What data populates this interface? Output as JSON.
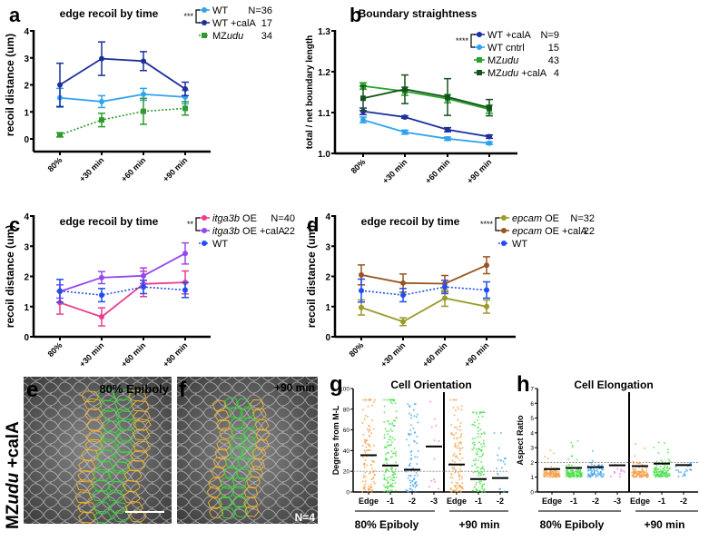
{
  "chart_data": [
    {
      "panel": "a",
      "type": "line",
      "title": "edge recoil by time",
      "xlabel": "",
      "ylabel": "recoil distance (um)",
      "ylim": [
        0,
        4
      ],
      "yticks": [
        0,
        1,
        2,
        3,
        4
      ],
      "categories": [
        "80%",
        "+30 min",
        "+60 min",
        "+90 min"
      ],
      "significance": "***",
      "significance_between": [
        "WT",
        "WT +calA"
      ],
      "n_header": "N=",
      "series": [
        {
          "name": "WT",
          "italic_part": "",
          "n": "36",
          "color": "#2fa3f0",
          "marker": "circle",
          "dashed": false,
          "values": [
            1.52,
            1.38,
            1.65,
            1.55
          ],
          "errors": [
            0.35,
            0.22,
            0.22,
            0.25
          ]
        },
        {
          "name": "WT +calA",
          "italic_part": "",
          "n": "17",
          "color": "#1c2f9c",
          "marker": "circle",
          "dashed": false,
          "values": [
            2.0,
            2.97,
            2.88,
            1.85
          ],
          "errors": [
            0.8,
            0.62,
            0.35,
            0.25
          ]
        },
        {
          "name": "MZ",
          "italic_part": "udu",
          "n": "34",
          "color": "#2e9b2e",
          "marker": "square",
          "dashed": true,
          "values": [
            0.15,
            0.7,
            1.02,
            1.13
          ],
          "errors": [
            0.08,
            0.25,
            0.48,
            0.25
          ]
        }
      ]
    },
    {
      "panel": "b",
      "type": "line",
      "title": "Boundary straightness",
      "xlabel": "",
      "ylabel": "total / net boundary length",
      "ylim": [
        1.0,
        1.3
      ],
      "yticks": [
        1.0,
        1.1,
        1.2,
        1.3
      ],
      "categories": [
        "80%",
        "+30 min",
        "+60 min",
        "+90 min"
      ],
      "significance": "****",
      "significance_between": [
        "WT +calA",
        "WT cntrl"
      ],
      "n_header": "N=",
      "series": [
        {
          "name": "WT +calA",
          "italic_part": "",
          "n": "9",
          "color": "#1c2f9c",
          "marker": "circle",
          "dashed": false,
          "values": [
            1.103,
            1.089,
            1.058,
            1.041
          ],
          "errors": [
            0.008,
            0.003,
            0.005,
            0.004
          ]
        },
        {
          "name": "WT cntrl",
          "italic_part": "",
          "n": "15",
          "color": "#2fa3f0",
          "marker": "circle",
          "dashed": false,
          "values": [
            1.082,
            1.052,
            1.036,
            1.025
          ],
          "errors": [
            0.007,
            0.005,
            0.004,
            0.003
          ]
        },
        {
          "name": "MZ",
          "italic_part": "udu",
          "n": "43",
          "color": "#27a327",
          "marker": "square",
          "dashed": false,
          "values": [
            1.165,
            1.152,
            1.134,
            1.108
          ],
          "errors": [
            0.008,
            0.01,
            0.01,
            0.01
          ]
        },
        {
          "name": "MZ",
          "italic_part": "udu",
          "name_suffix": " +calA",
          "n": "4",
          "color": "#14531d",
          "marker": "square",
          "dashed": false,
          "values": [
            1.135,
            1.157,
            1.138,
            1.112
          ],
          "errors": [
            0.03,
            0.035,
            0.045,
            0.02
          ]
        }
      ]
    },
    {
      "panel": "c",
      "type": "line",
      "title": "edge recoil by time",
      "xlabel": "",
      "ylabel": "recoil distance (um)",
      "ylim": [
        0,
        4
      ],
      "yticks": [
        0,
        1,
        2,
        3,
        4
      ],
      "categories": [
        "80%",
        "+30 min",
        "+60 min",
        "+90 min"
      ],
      "significance": "**",
      "significance_between": [
        "itga3b OE",
        "itga3b OE +calA"
      ],
      "n_header": "N=",
      "series": [
        {
          "name": "",
          "italic_part": "itga3b",
          "name_suffix": " OE",
          "n": "40",
          "color": "#ee3b8f",
          "marker": "circle",
          "dashed": false,
          "values": [
            1.13,
            0.66,
            1.75,
            1.8
          ],
          "errors": [
            0.38,
            0.3,
            0.42,
            0.38
          ]
        },
        {
          "name": "",
          "italic_part": "itga3b",
          "name_suffix": " OE +calA",
          "n": "22",
          "color": "#9747f0",
          "marker": "circle",
          "dashed": false,
          "values": [
            1.5,
            1.96,
            2.02,
            2.76
          ],
          "errors": [
            0.22,
            0.2,
            0.26,
            0.35
          ]
        },
        {
          "name": "WT",
          "italic_part": "",
          "n": "",
          "color": "#1f4ef0",
          "marker": "circle",
          "dashed": true,
          "values": [
            1.52,
            1.38,
            1.65,
            1.55
          ],
          "errors": [
            0.38,
            0.22,
            0.22,
            0.25
          ]
        }
      ]
    },
    {
      "panel": "d",
      "type": "line",
      "title": "edge recoil by time",
      "xlabel": "",
      "ylabel": "recoil distance (um)",
      "ylim": [
        0,
        4
      ],
      "yticks": [
        0,
        1,
        2,
        3,
        4
      ],
      "categories": [
        "80%",
        "+30 min",
        "+60 min",
        "+90 min"
      ],
      "significance": "****",
      "significance_between": [
        "epcam OE",
        "epcam OE +calA"
      ],
      "n_header": "N=",
      "series": [
        {
          "name": "",
          "italic_part": "epcam",
          "name_suffix": " OE",
          "n": "32",
          "color": "#9b9a2a",
          "marker": "circle",
          "dashed": false,
          "values": [
            0.97,
            0.5,
            1.28,
            1.0
          ],
          "errors": [
            0.25,
            0.13,
            0.27,
            0.22
          ]
        },
        {
          "name": "",
          "italic_part": "epcam",
          "name_suffix": " OE +calA",
          "n": "22",
          "color": "#9a5420",
          "marker": "circle",
          "dashed": false,
          "values": [
            2.05,
            1.78,
            1.76,
            2.37
          ],
          "errors": [
            0.33,
            0.3,
            0.27,
            0.28
          ]
        },
        {
          "name": "WT",
          "italic_part": "",
          "n": "",
          "color": "#1f4ef0",
          "marker": "circle",
          "dashed": true,
          "values": [
            1.53,
            1.38,
            1.65,
            1.55
          ],
          "errors": [
            0.38,
            0.22,
            0.22,
            0.27
          ]
        }
      ]
    },
    {
      "panel": "g",
      "type": "scatter",
      "title": "Cell Orientation",
      "ylabel": "Degrees from M-L",
      "ylim": [
        0,
        100
      ],
      "yticks": [
        0,
        20,
        40,
        60,
        80,
        100
      ],
      "reference_line": 20,
      "groups": [
        {
          "label": "80% Epiboly",
          "categories": [
            "Edge",
            "-1",
            "-2",
            "-3"
          ],
          "means": [
            35.5,
            25.5,
            21.5,
            44
          ],
          "colors": [
            "#f5a04a",
            "#4ee04e",
            "#3fa6ee",
            "#f56ee8"
          ],
          "counts": [
            110,
            140,
            80,
            12
          ],
          "max": [
            89,
            89,
            85,
            90
          ]
        },
        {
          "label": "+90 min",
          "categories": [
            "Edge",
            "-1",
            "-2"
          ],
          "means": [
            26.5,
            12.5,
            13.5
          ],
          "colors": [
            "#f5a04a",
            "#4ee04e",
            "#3fa6ee"
          ],
          "counts": [
            110,
            120,
            20
          ],
          "max": [
            89,
            77,
            57
          ]
        }
      ]
    },
    {
      "panel": "h",
      "type": "scatter",
      "title": "Cell Elongation",
      "ylabel": "Aspect Ratio",
      "ylim": [
        0,
        7
      ],
      "yticks": [
        0,
        1,
        2,
        3,
        4,
        5,
        6,
        7
      ],
      "reference_line": 2,
      "groups": [
        {
          "label": "80% Epiboly",
          "categories": [
            "Edge",
            "-1",
            "-2",
            "-3"
          ],
          "means": [
            1.55,
            1.63,
            1.68,
            1.8
          ],
          "colors": [
            "#f5a04a",
            "#4ee04e",
            "#3fa6ee",
            "#f56ee8"
          ],
          "counts": [
            110,
            140,
            80,
            12
          ],
          "max": [
            3.15,
            3.7,
            3.5,
            3.4
          ]
        },
        {
          "label": "+90 min",
          "categories": [
            "Edge",
            "-1",
            "-2"
          ],
          "means": [
            1.75,
            1.92,
            1.82
          ],
          "colors": [
            "#f5a04a",
            "#4ee04e",
            "#3fa6ee"
          ],
          "counts": [
            110,
            120,
            20
          ],
          "max": [
            3.9,
            3.35,
            2.95
          ]
        }
      ]
    }
  ],
  "panels": {
    "labels": {
      "a": "a",
      "b": "b",
      "c": "c",
      "d": "d",
      "e": "e",
      "f": "f",
      "g": "g",
      "h": "h"
    },
    "image_row_label_prefix": "MZ",
    "image_row_label_italic": "udu",
    "image_row_label_suffix": " +calA",
    "e_caption": "80% Epiboly",
    "f_caption": "+90 min",
    "f_count": "N=4"
  }
}
